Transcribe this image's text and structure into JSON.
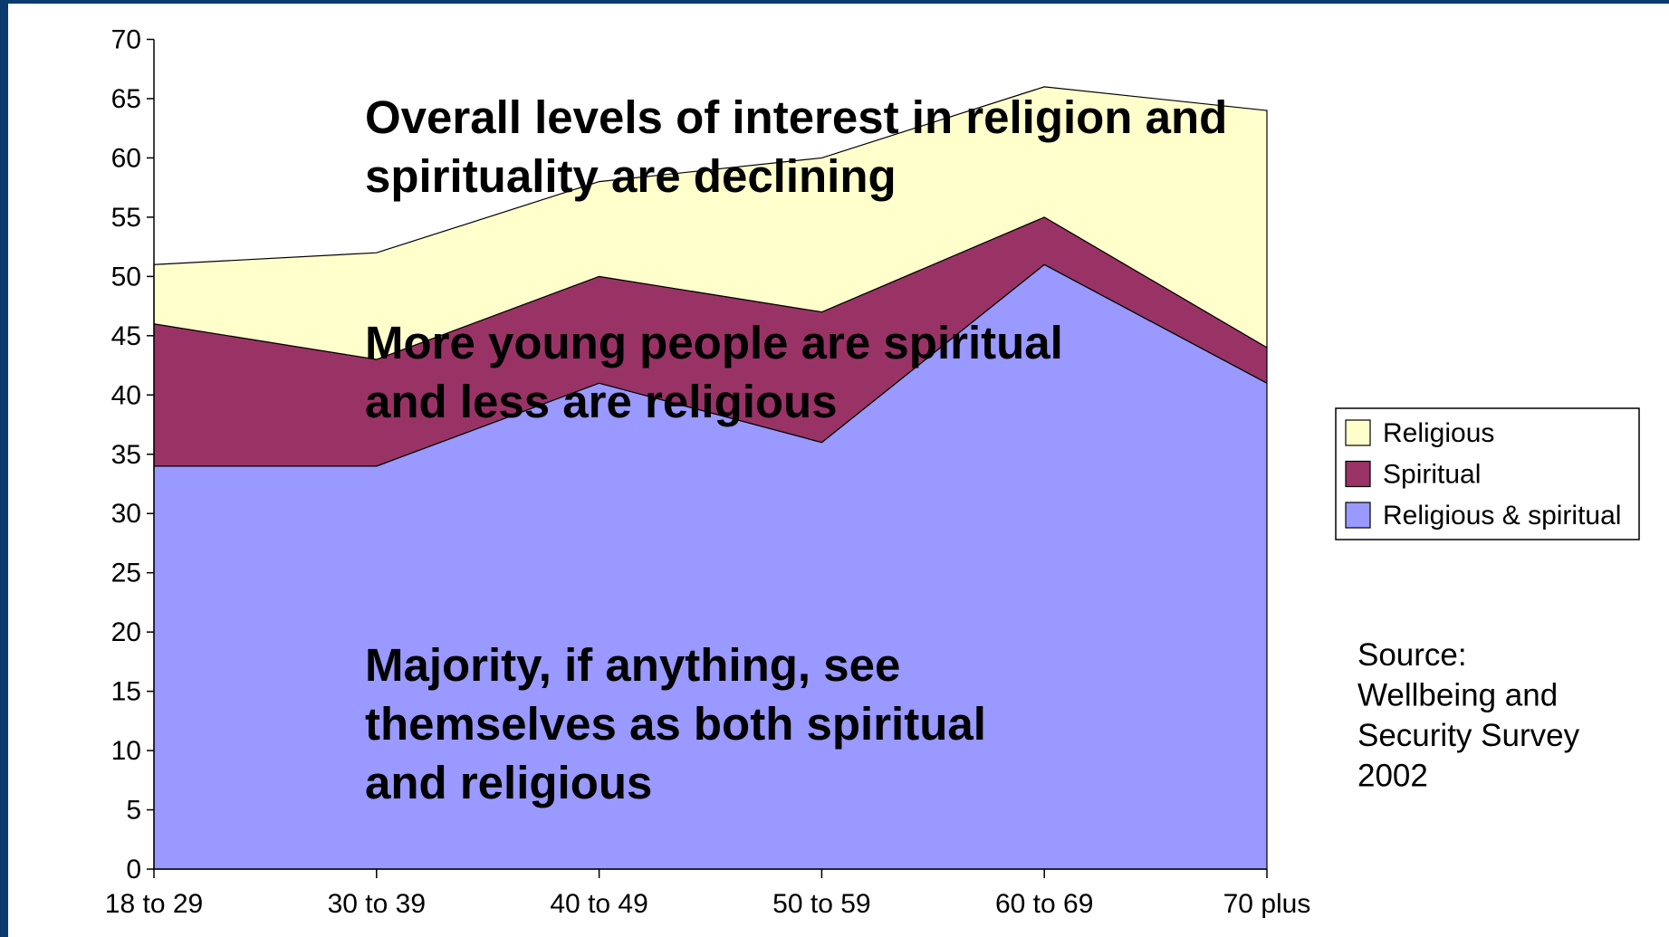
{
  "chart_data": {
    "type": "stacked_area",
    "categories": [
      "18 to 29",
      "30 to 39",
      "40 to 49",
      "50 to 59",
      "60 to 69",
      "70 plus"
    ],
    "series": [
      {
        "name": "Religious & spiritual",
        "color": "#9999ff",
        "values": [
          34,
          34,
          41,
          36,
          51,
          41
        ]
      },
      {
        "name": "Spiritual",
        "color": "#993366",
        "values": [
          12,
          9,
          9,
          11,
          4,
          3
        ]
      },
      {
        "name": "Religious",
        "color": "#ffffcc",
        "values": [
          5,
          9,
          8,
          13,
          11,
          20
        ]
      }
    ],
    "ylim": [
      0,
      70
    ],
    "yticks": [
      0,
      5,
      10,
      15,
      20,
      25,
      30,
      35,
      40,
      45,
      50,
      55,
      60,
      65,
      70
    ],
    "grid": false,
    "legend": "right",
    "annotations": [
      [
        "Overall levels of interest in religion and",
        "spirituality are declining"
      ],
      [
        "More young people are spiritual",
        "and less are religious"
      ],
      [
        "Majority, if anything, see",
        "themselves as both spiritual",
        "and religious"
      ]
    ],
    "source": [
      "Source:",
      "Wellbeing and",
      "Security Survey",
      "2002"
    ]
  }
}
